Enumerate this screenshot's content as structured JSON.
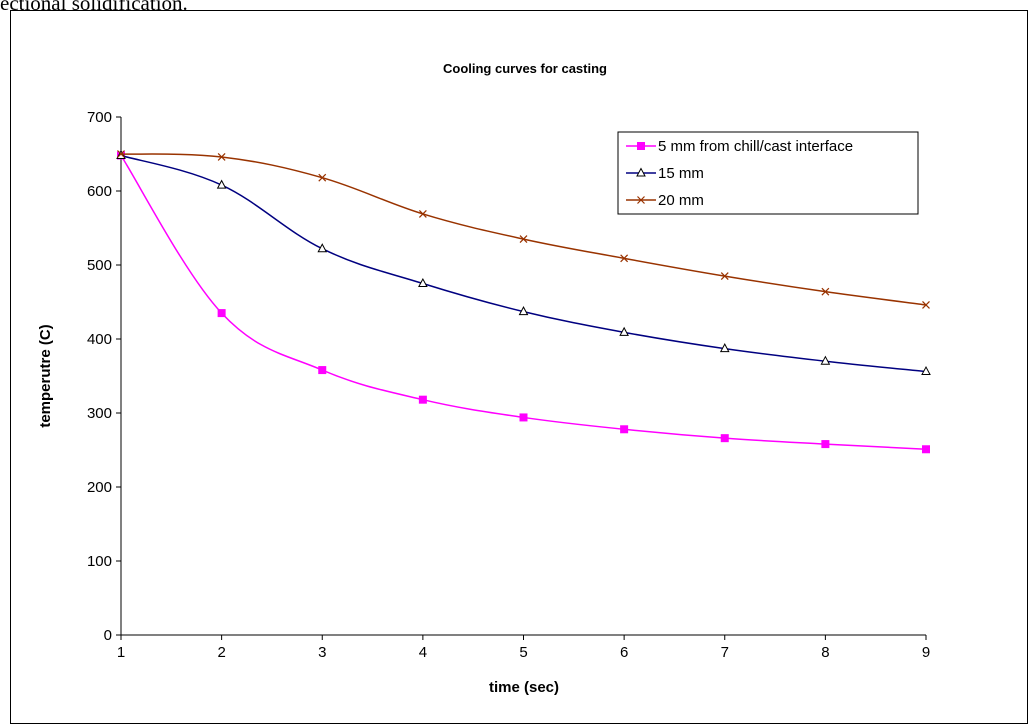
{
  "page": {
    "top_text": "ectional solidification."
  },
  "chart_data": {
    "type": "line",
    "title": "Cooling curves for casting",
    "xlabel": "time (sec)",
    "ylabel": "temperutre (C)",
    "x": [
      1,
      2,
      3,
      4,
      5,
      6,
      7,
      8,
      9
    ],
    "xlim": [
      1,
      9
    ],
    "ylim": [
      0,
      700
    ],
    "x_ticks": [
      "1",
      "2",
      "3",
      "4",
      "5",
      "6",
      "7",
      "8",
      "9"
    ],
    "y_ticks": [
      "0",
      "100",
      "200",
      "300",
      "400",
      "500",
      "600",
      "700"
    ],
    "grid": false,
    "legend_position": "top-right",
    "series": [
      {
        "name": "5 mm from chill/cast interface",
        "values": [
          648,
          435,
          358,
          318,
          294,
          278,
          266,
          258,
          251
        ],
        "color": "#FF00FF",
        "marker": "square"
      },
      {
        "name": "15 mm",
        "values": [
          648,
          608,
          522,
          475,
          437,
          409,
          387,
          370,
          356
        ],
        "color": "#000080",
        "marker": "triangle"
      },
      {
        "name": "20 mm",
        "values": [
          650,
          646,
          618,
          569,
          535,
          509,
          485,
          464,
          446
        ],
        "color": "#993300",
        "marker": "x"
      }
    ]
  }
}
